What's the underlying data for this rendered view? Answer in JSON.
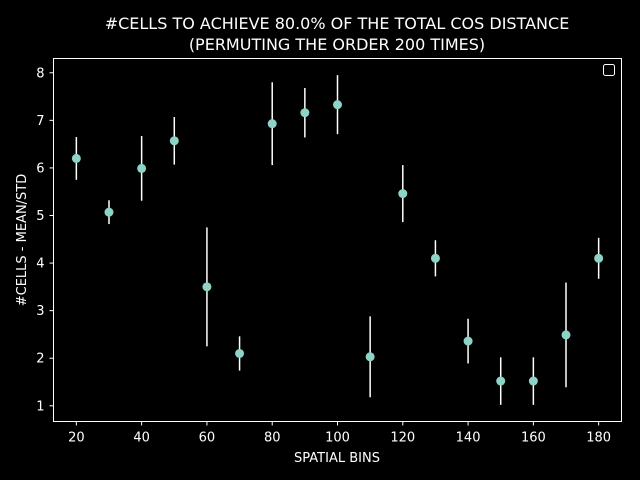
{
  "chart_data": {
    "type": "scatter",
    "title": "#CELLS TO ACHIEVE 80.0% OF THE TOTAL COS DISTANCE",
    "subtitle": "(PERMUTING THE ORDER 200 TIMES)",
    "xlabel": "SPATIAL BINS",
    "ylabel": "#CELLS - MEAN/STD",
    "xlim": [
      13,
      187
    ],
    "ylim": [
      0.67,
      8.3
    ],
    "xticks": [
      20,
      40,
      60,
      80,
      100,
      120,
      140,
      160,
      180
    ],
    "yticks": [
      1,
      2,
      3,
      4,
      5,
      6,
      7,
      8
    ],
    "grid": false,
    "legend": "top-right (empty)",
    "colors": {
      "background": "#000000",
      "marker": "#8dd3c7",
      "errorbar": "#ffffff",
      "axes": "#ffffff"
    },
    "series": [
      {
        "x": [
          20,
          30,
          40,
          50,
          60,
          70,
          80,
          90,
          100,
          110,
          120,
          130,
          140,
          150,
          160,
          170,
          180
        ],
        "y": [
          6.2,
          5.07,
          5.99,
          6.57,
          3.5,
          2.1,
          6.93,
          7.16,
          7.33,
          2.03,
          5.46,
          4.1,
          2.36,
          1.52,
          1.52,
          2.49,
          4.1
        ],
        "yerr": [
          0.45,
          0.25,
          0.68,
          0.5,
          1.25,
          0.36,
          0.87,
          0.52,
          0.62,
          0.85,
          0.6,
          0.38,
          0.47,
          0.5,
          0.5,
          1.1,
          0.43
        ]
      }
    ]
  }
}
